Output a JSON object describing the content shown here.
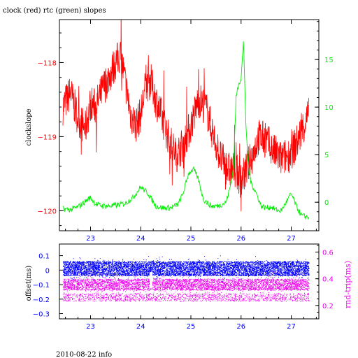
{
  "title": "clock (red) rtc (green) slopes",
  "footer": "2010-08-22 info",
  "colors": {
    "clock": "#ff0000",
    "rtc": "#00ee00",
    "offset": "#0000ff",
    "rndtrip": "#ee00ee",
    "axis": "#000000"
  },
  "chart_data": [
    {
      "type": "line",
      "title": "clock (red) rtc (green) slopes",
      "ylabel": "clockslope",
      "xlim": [
        22.38,
        27.55
      ],
      "ylim": [
        -120.27,
        -117.42
      ],
      "y2lim": [
        -3.0,
        19.2
      ],
      "x_ticks": [
        23,
        24,
        25,
        26,
        27
      ],
      "y_ticks": [
        -120,
        -119,
        -118
      ],
      "y2_ticks": [
        0,
        5,
        10,
        15
      ],
      "grid": false,
      "series": [
        {
          "name": "clock",
          "axis": "left",
          "x": [
            22.45,
            22.6,
            22.75,
            22.9,
            23.0,
            23.1,
            23.25,
            23.4,
            23.5,
            23.6,
            23.7,
            23.8,
            23.9,
            24.0,
            24.1,
            24.2,
            24.3,
            24.4,
            24.55,
            24.7,
            24.85,
            25.0,
            25.15,
            25.3,
            25.45,
            25.6,
            25.75,
            25.9,
            26.0,
            26.1,
            26.2,
            26.35,
            26.5,
            26.65,
            26.8,
            26.95,
            27.1,
            27.25,
            27.35
          ],
          "values": [
            -118.6,
            -118.4,
            -118.75,
            -118.9,
            -118.55,
            -118.6,
            -118.35,
            -118.15,
            -118.0,
            -117.9,
            -118.3,
            -118.7,
            -118.85,
            -118.7,
            -118.3,
            -118.25,
            -118.5,
            -118.7,
            -119.0,
            -119.25,
            -119.1,
            -118.85,
            -118.5,
            -118.6,
            -119.0,
            -119.3,
            -119.45,
            -119.45,
            -119.6,
            -119.45,
            -119.3,
            -119.0,
            -119.05,
            -119.2,
            -119.3,
            -119.25,
            -119.1,
            -118.85,
            -118.7
          ]
        },
        {
          "name": "rtc",
          "axis": "right",
          "x": [
            22.45,
            22.6,
            22.75,
            22.9,
            23.0,
            23.1,
            23.25,
            23.4,
            23.55,
            23.7,
            23.85,
            24.0,
            24.15,
            24.3,
            24.45,
            24.6,
            24.75,
            24.85,
            24.95,
            25.05,
            25.15,
            25.25,
            25.4,
            25.55,
            25.7,
            25.78,
            25.85,
            25.9,
            25.95,
            26.0,
            26.05,
            26.1,
            26.15,
            26.2,
            26.3,
            26.4,
            26.5,
            26.6,
            26.7,
            26.8,
            26.9,
            27.0,
            27.1,
            27.2,
            27.35
          ],
          "values": [
            -0.7,
            -0.8,
            -0.5,
            0.1,
            0.5,
            -0.2,
            -0.4,
            -0.4,
            -0.3,
            -0.1,
            0.5,
            1.6,
            0.9,
            -0.4,
            -0.6,
            -0.6,
            -0.2,
            1.0,
            3.0,
            3.5,
            2.4,
            0.3,
            -0.4,
            -0.4,
            0.0,
            1.5,
            3.6,
            11.0,
            12.5,
            13.0,
            17.0,
            7.5,
            3.5,
            2.0,
            1.0,
            -0.4,
            -0.6,
            -0.5,
            -0.8,
            -0.9,
            0.0,
            0.9,
            -0.4,
            -1.4,
            -1.6
          ]
        }
      ]
    },
    {
      "type": "scatter",
      "ylabel": "offset(ms)",
      "y2label": "rnd-trip(ms)",
      "xlim": [
        22.38,
        27.55
      ],
      "ylim": [
        -0.336,
        0.18
      ],
      "y2lim": [
        0.1,
        0.66
      ],
      "x_ticks": [
        23,
        24,
        25,
        26,
        27
      ],
      "y_ticks": [
        -0.3,
        -0.2,
        -0.1,
        0,
        0.1
      ],
      "y_tick_labels": [
        "−0.3",
        "−0.2",
        "−0.1",
        "0",
        "0.1"
      ],
      "y2_ticks": [
        0.2,
        0.4,
        0.6
      ],
      "grid": false,
      "series": [
        {
          "name": "offset",
          "axis": "left",
          "x": [
            22.5,
            23.0,
            23.5,
            24.0,
            24.2,
            24.5,
            25.0,
            25.5,
            26.0,
            26.5,
            27.0,
            27.35
          ],
          "values": [
            0.01,
            0.01,
            0.01,
            0.01,
            0.01,
            0.01,
            0.01,
            0.01,
            0.01,
            0.01,
            0.01,
            0.01
          ],
          "band": [
            -0.04,
            0.06
          ]
        },
        {
          "name": "rnd-trip",
          "axis": "right",
          "x": [
            22.5,
            23.0,
            23.5,
            24.0,
            24.2,
            24.5,
            25.0,
            25.5,
            26.0,
            26.5,
            27.0,
            27.35
          ],
          "values": [
            0.33,
            0.33,
            0.33,
            0.33,
            0.33,
            0.33,
            0.33,
            0.33,
            0.33,
            0.33,
            0.33,
            0.33
          ],
          "band": [
            0.24,
            0.45
          ]
        }
      ]
    }
  ]
}
